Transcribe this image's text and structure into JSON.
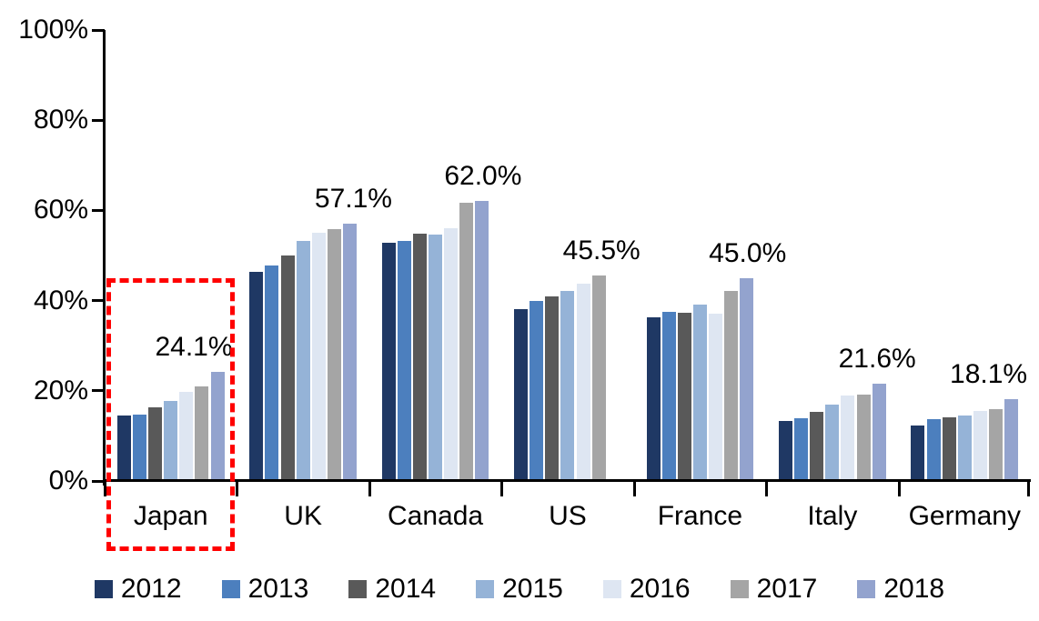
{
  "chart_data": {
    "type": "bar",
    "title": "",
    "categories": [
      "Japan",
      "UK",
      "Canada",
      "US",
      "France",
      "Italy",
      "Germany"
    ],
    "series": [
      {
        "name": "2012",
        "color": "#1F3864",
        "values": [
          14.5,
          46.3,
          52.9,
          38.2,
          36.3,
          13.3,
          12.4
        ]
      },
      {
        "name": "2013",
        "color": "#4C7FBE",
        "values": [
          14.8,
          47.8,
          53.3,
          40.0,
          37.5,
          14.0,
          13.8
        ]
      },
      {
        "name": "2014",
        "color": "#595959",
        "values": [
          16.4,
          50.0,
          54.9,
          41.0,
          37.4,
          15.3,
          14.2
        ]
      },
      {
        "name": "2015",
        "color": "#95B3D7",
        "values": [
          17.8,
          53.3,
          54.6,
          42.1,
          39.2,
          16.9,
          14.6
        ]
      },
      {
        "name": "2016",
        "color": "#DEE6F2",
        "values": [
          19.8,
          55.0,
          56.1,
          43.7,
          37.2,
          19.0,
          15.5
        ]
      },
      {
        "name": "2017",
        "color": "#A5A5A5",
        "values": [
          21.0,
          55.9,
          61.6,
          45.5,
          42.1,
          19.2,
          15.9
        ]
      },
      {
        "name": "2018",
        "color": "#93A3CE",
        "values": [
          24.1,
          57.1,
          62.0,
          null,
          45.0,
          21.6,
          18.1
        ]
      }
    ],
    "data_labels": [
      "24.1%",
      "57.1%",
      "62.0%",
      "45.5%",
      "45.0%",
      "21.6%",
      "18.1%"
    ],
    "y_ticks": [
      "0%",
      "20%",
      "40%",
      "60%",
      "80%",
      "100%"
    ],
    "ylim": [
      0,
      100
    ],
    "grid": false,
    "legend_position": "bottom",
    "axis_color": "#000000",
    "text_color": "#000000",
    "highlight": {
      "category": "Japan",
      "style": "dashed-rectangle",
      "color": "#FF0000"
    }
  }
}
